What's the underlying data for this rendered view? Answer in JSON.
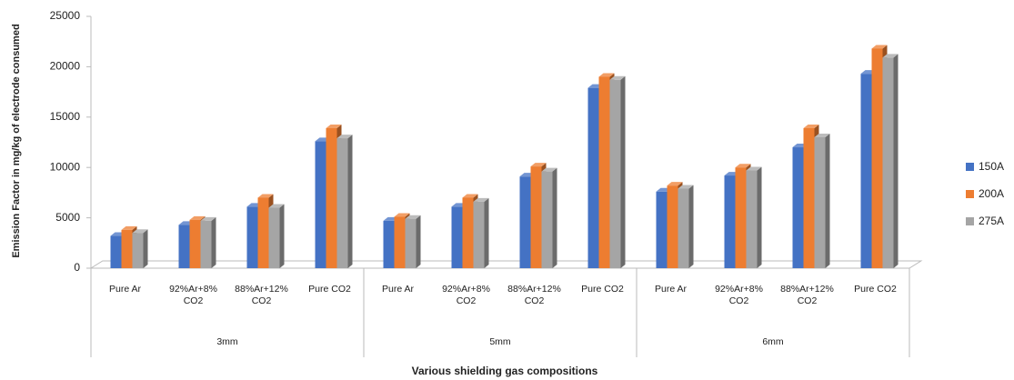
{
  "chart_data": {
    "type": "bar3d",
    "y_label": "Emission Factor in mg/kg of electrode consumed",
    "x_label": "Various shielding gas compositions",
    "groups": [
      "3mm",
      "5mm",
      "6mm"
    ],
    "categories": [
      "Pure Ar",
      "92%Ar+8% CO2",
      "88%Ar+12% CO2",
      "Pure CO2",
      "Pure Ar",
      "92%Ar+8% CO2",
      "88%Ar+12% CO2",
      "Pure CO2",
      "Pure Ar",
      "92%Ar+8% CO2",
      "88%Ar+12% CO2",
      "Pure CO2"
    ],
    "series": [
      {
        "name": "150A",
        "color": "#4472c4",
        "values": [
          3200,
          4300,
          6100,
          12600,
          4700,
          6100,
          9100,
          17900,
          7600,
          9200,
          12000,
          19300
        ]
      },
      {
        "name": "200A",
        "color": "#ed7d31",
        "values": [
          3800,
          4800,
          7000,
          13900,
          5100,
          7000,
          10100,
          19000,
          8200,
          10000,
          13900,
          21800
        ]
      },
      {
        "name": "275A",
        "color": "#a5a5a5",
        "values": [
          3500,
          4700,
          6000,
          12900,
          4900,
          6600,
          9600,
          18700,
          7900,
          9700,
          13000,
          20900
        ]
      }
    ],
    "ylim": [
      0,
      25000
    ],
    "yticks": [
      0,
      5000,
      10000,
      15000,
      20000,
      25000
    ],
    "legend": "right"
  }
}
